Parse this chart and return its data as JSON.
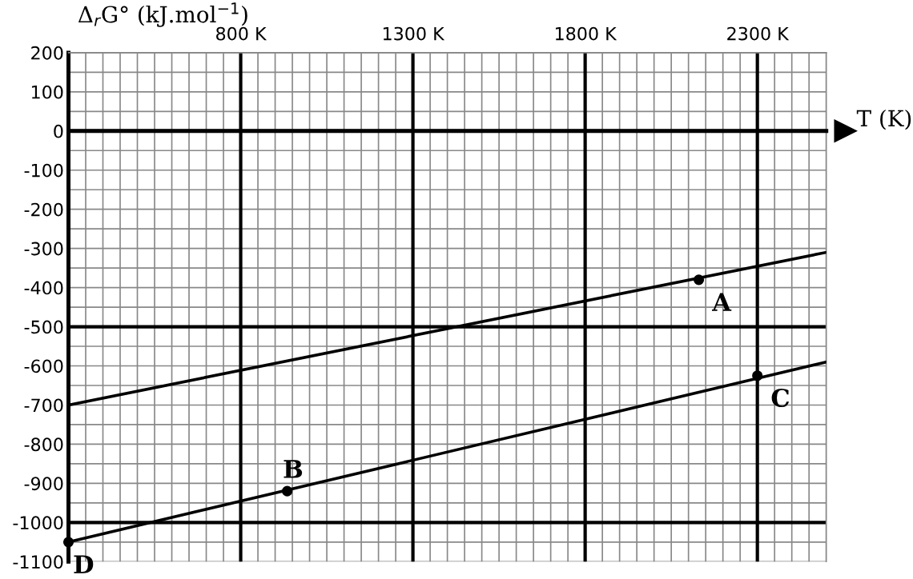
{
  "chart_data": {
    "type": "line",
    "xlabel": "T (K)",
    "ylabel": "Δ$_{r}$G° (kJ.mol$^{−1}$)",
    "series": [
      {
        "color": "#000000",
        "x": [
          300,
          2500
        ],
        "values": [
          -700,
          -310
        ],
        "marker": "none"
      },
      {
        "color": "#000000",
        "x": [
          300,
          2500
        ],
        "values": [
          -1050,
          -590
        ],
        "marker": "none"
      },
      {
        "type": "scatter",
        "color": "#000000",
        "x": [
          2130,
          935,
          2300,
          300
        ],
        "values": [
          -380,
          -920,
          -625,
          -1050
        ]
      }
    ],
    "annotations": [
      {
        "text": "A",
        "x": 2130,
        "y": -380
      },
      {
        "text": "B",
        "x": 935,
        "y": -920
      },
      {
        "text": "C",
        "x": 2300,
        "y": -625
      },
      {
        "text": "D",
        "x": 300,
        "y": -1050
      }
    ],
    "xlim": [
      300,
      2500
    ],
    "xticks": [
      {
        "value": 800,
        "label": "800 K"
      },
      {
        "value": 1300,
        "label": "1300 K"
      },
      {
        "value": 1800,
        "label": "1800 K"
      },
      {
        "value": 2300,
        "label": "2300 K"
      }
    ],
    "ylim": [
      -1100,
      200
    ],
    "yticks": [
      200,
      100,
      0,
      -100,
      -200,
      -300,
      -400,
      -500,
      -600,
      -700,
      -800,
      -900,
      -1000,
      -1100
    ],
    "grid": true,
    "marker": "circle",
    "line_style": "solid"
  }
}
